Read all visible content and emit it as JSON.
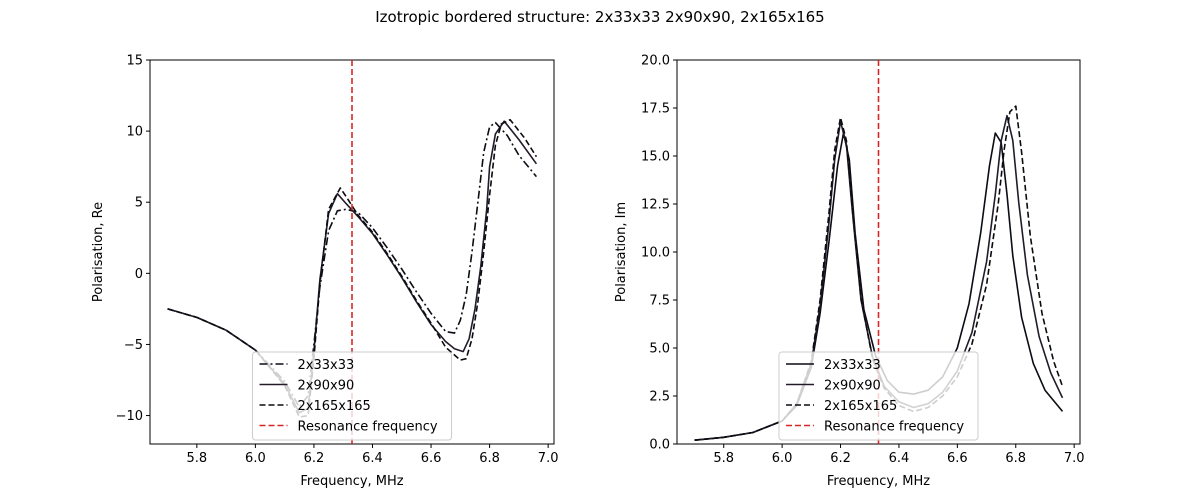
{
  "figure": {
    "suptitle": "Izotropic bordered structure: 2x33x33 2x90x90, 2x165x165"
  },
  "chart_data": [
    {
      "type": "line",
      "xlabel": "Frequency, MHz",
      "ylabel": "Polarisation, Re",
      "xlim": [
        5.64,
        7.02
      ],
      "ylim": [
        -12,
        15
      ],
      "xticks": [
        5.8,
        6.0,
        6.2,
        6.4,
        6.6,
        6.8,
        7.0
      ],
      "xtick_labels": [
        "5.8",
        "6.0",
        "6.2",
        "6.4",
        "6.6",
        "6.8",
        "7.0"
      ],
      "yticks": [
        -10,
        -5,
        0,
        5,
        10,
        15
      ],
      "ytick_labels": [
        "−10",
        "−5",
        "0",
        "5",
        "10",
        "15"
      ],
      "grid": false,
      "legend_position": "lower center",
      "resonance_x": 6.33,
      "series": [
        {
          "name": "2x33x33",
          "color": "#0d0b14",
          "style": "dashdot",
          "x": [
            5.7,
            5.8,
            5.9,
            6.0,
            6.1,
            6.15,
            6.18,
            6.2,
            6.22,
            6.25,
            6.28,
            6.31,
            6.35,
            6.4,
            6.45,
            6.5,
            6.55,
            6.6,
            6.65,
            6.68,
            6.7,
            6.72,
            6.74,
            6.76,
            6.78,
            6.8,
            6.82,
            6.86,
            6.9,
            6.96
          ],
          "y": [
            -2.5,
            -3.1,
            -4.0,
            -5.4,
            -7.6,
            -9.4,
            -8.6,
            -5.0,
            -1.0,
            3.0,
            4.4,
            4.5,
            4.3,
            3.2,
            1.8,
            0.3,
            -1.3,
            -2.8,
            -4.1,
            -4.2,
            -3.3,
            -1.5,
            1.5,
            5.0,
            8.5,
            10.3,
            10.6,
            9.7,
            8.3,
            6.8
          ]
        },
        {
          "name": "2x90x90",
          "color": "#231a2a",
          "style": "solid",
          "x": [
            5.7,
            5.8,
            5.9,
            6.0,
            6.1,
            6.15,
            6.18,
            6.2,
            6.22,
            6.25,
            6.28,
            6.31,
            6.35,
            6.4,
            6.45,
            6.5,
            6.55,
            6.6,
            6.65,
            6.68,
            6.71,
            6.73,
            6.75,
            6.77,
            6.79,
            6.8,
            6.82,
            6.85,
            6.9,
            6.96
          ],
          "y": [
            -2.5,
            -3.1,
            -4.0,
            -5.4,
            -7.8,
            -9.8,
            -9.5,
            -5.5,
            -0.5,
            4.2,
            5.6,
            4.9,
            4.0,
            2.8,
            1.3,
            -0.3,
            -2.0,
            -3.6,
            -4.8,
            -5.3,
            -5.5,
            -4.6,
            -2.5,
            0.5,
            4.5,
            7.5,
            9.8,
            10.7,
            9.4,
            7.7
          ]
        },
        {
          "name": "2x165x165",
          "color": "#0b0b10",
          "style": "dashed",
          "x": [
            5.7,
            5.8,
            5.9,
            6.0,
            6.1,
            6.15,
            6.18,
            6.2,
            6.22,
            6.25,
            6.29,
            6.31,
            6.35,
            6.4,
            6.45,
            6.5,
            6.55,
            6.6,
            6.65,
            6.7,
            6.72,
            6.74,
            6.76,
            6.78,
            6.8,
            6.82,
            6.84,
            6.87,
            6.92,
            6.96
          ],
          "y": [
            -2.5,
            -3.1,
            -4.0,
            -5.4,
            -7.9,
            -10.1,
            -10.0,
            -6.0,
            -0.8,
            4.5,
            6.0,
            5.4,
            4.1,
            2.9,
            1.4,
            -0.2,
            -1.9,
            -3.5,
            -5.2,
            -6.1,
            -6.0,
            -4.6,
            -2.0,
            1.5,
            5.5,
            9.0,
            10.5,
            10.8,
            9.5,
            8.2
          ]
        }
      ],
      "legend": [
        {
          "label": "2x33x33",
          "color": "#0d0b14",
          "style": "dashdot"
        },
        {
          "label": "2x90x90",
          "color": "#231a2a",
          "style": "solid"
        },
        {
          "label": "2x165x165",
          "color": "#0b0b10",
          "style": "dashed"
        },
        {
          "label": "Resonance frequency",
          "color": "#d62728",
          "style": "dashed"
        }
      ]
    },
    {
      "type": "line",
      "xlabel": "Frequency, MHz",
      "ylabel": "Polarisation, Im",
      "xlim": [
        5.64,
        7.02
      ],
      "ylim": [
        0,
        20
      ],
      "xticks": [
        5.8,
        6.0,
        6.2,
        6.4,
        6.6,
        6.8,
        7.0
      ],
      "xtick_labels": [
        "5.8",
        "6.0",
        "6.2",
        "6.4",
        "6.6",
        "6.8",
        "7.0"
      ],
      "yticks": [
        0,
        2.5,
        5,
        7.5,
        10,
        12.5,
        15,
        17.5,
        20
      ],
      "ytick_labels": [
        "0.0",
        "2.5",
        "5.0",
        "7.5",
        "10.0",
        "12.5",
        "15.0",
        "17.5",
        "20.0"
      ],
      "grid": false,
      "legend_position": "lower center",
      "resonance_x": 6.33,
      "series": [
        {
          "name": "2x33x33",
          "color": "#0d0b14",
          "style": "solid",
          "x": [
            5.7,
            5.8,
            5.9,
            6.0,
            6.05,
            6.1,
            6.13,
            6.16,
            6.19,
            6.21,
            6.23,
            6.25,
            6.28,
            6.32,
            6.36,
            6.4,
            6.45,
            6.5,
            6.55,
            6.6,
            6.64,
            6.68,
            6.71,
            6.73,
            6.75,
            6.77,
            6.79,
            6.82,
            6.86,
            6.9,
            6.96
          ],
          "y": [
            0.2,
            0.35,
            0.6,
            1.2,
            2.0,
            4.0,
            6.8,
            10.5,
            14.5,
            16.2,
            14.8,
            11.0,
            7.0,
            4.6,
            3.3,
            2.7,
            2.6,
            2.8,
            3.5,
            5.0,
            7.3,
            11.0,
            14.5,
            16.2,
            15.7,
            13.0,
            9.8,
            6.6,
            4.2,
            2.8,
            1.7
          ]
        },
        {
          "name": "2x90x90",
          "color": "#231a2a",
          "style": "solid",
          "x": [
            5.7,
            5.8,
            5.9,
            6.0,
            6.05,
            6.1,
            6.13,
            6.16,
            6.18,
            6.2,
            6.22,
            6.24,
            6.27,
            6.31,
            6.35,
            6.4,
            6.45,
            6.5,
            6.55,
            6.6,
            6.65,
            6.7,
            6.73,
            6.75,
            6.77,
            6.79,
            6.81,
            6.84,
            6.88,
            6.92,
            6.96
          ],
          "y": [
            0.2,
            0.35,
            0.6,
            1.2,
            2.1,
            4.2,
            7.2,
            11.5,
            14.8,
            16.8,
            15.6,
            12.2,
            7.5,
            4.5,
            3.0,
            2.2,
            1.9,
            2.1,
            2.7,
            3.8,
            5.8,
            9.5,
            13.0,
            15.8,
            17.1,
            15.8,
            12.6,
            8.8,
            5.6,
            3.7,
            2.4
          ]
        },
        {
          "name": "2x165x165",
          "color": "#0b0b10",
          "style": "dashed",
          "x": [
            5.7,
            5.8,
            5.9,
            6.0,
            6.05,
            6.1,
            6.13,
            6.16,
            6.18,
            6.2,
            6.22,
            6.24,
            6.27,
            6.31,
            6.35,
            6.4,
            6.45,
            6.5,
            6.55,
            6.6,
            6.65,
            6.7,
            6.74,
            6.76,
            6.78,
            6.8,
            6.82,
            6.85,
            6.89,
            6.93,
            6.96
          ],
          "y": [
            0.2,
            0.35,
            0.6,
            1.2,
            2.1,
            4.3,
            7.5,
            12.0,
            15.3,
            17.0,
            15.8,
            12.4,
            7.6,
            4.4,
            2.9,
            2.0,
            1.7,
            1.9,
            2.5,
            3.5,
            5.2,
            8.3,
            12.5,
            15.3,
            17.3,
            17.6,
            15.2,
            10.8,
            6.8,
            4.3,
            3.0
          ]
        }
      ],
      "legend": [
        {
          "label": "2x33x33",
          "color": "#0d0b14",
          "style": "solid"
        },
        {
          "label": "2x90x90",
          "color": "#231a2a",
          "style": "solid"
        },
        {
          "label": "2x165x165",
          "color": "#0b0b10",
          "style": "dashed"
        },
        {
          "label": "Resonance frequency",
          "color": "#d62728",
          "style": "dashed"
        }
      ]
    }
  ]
}
